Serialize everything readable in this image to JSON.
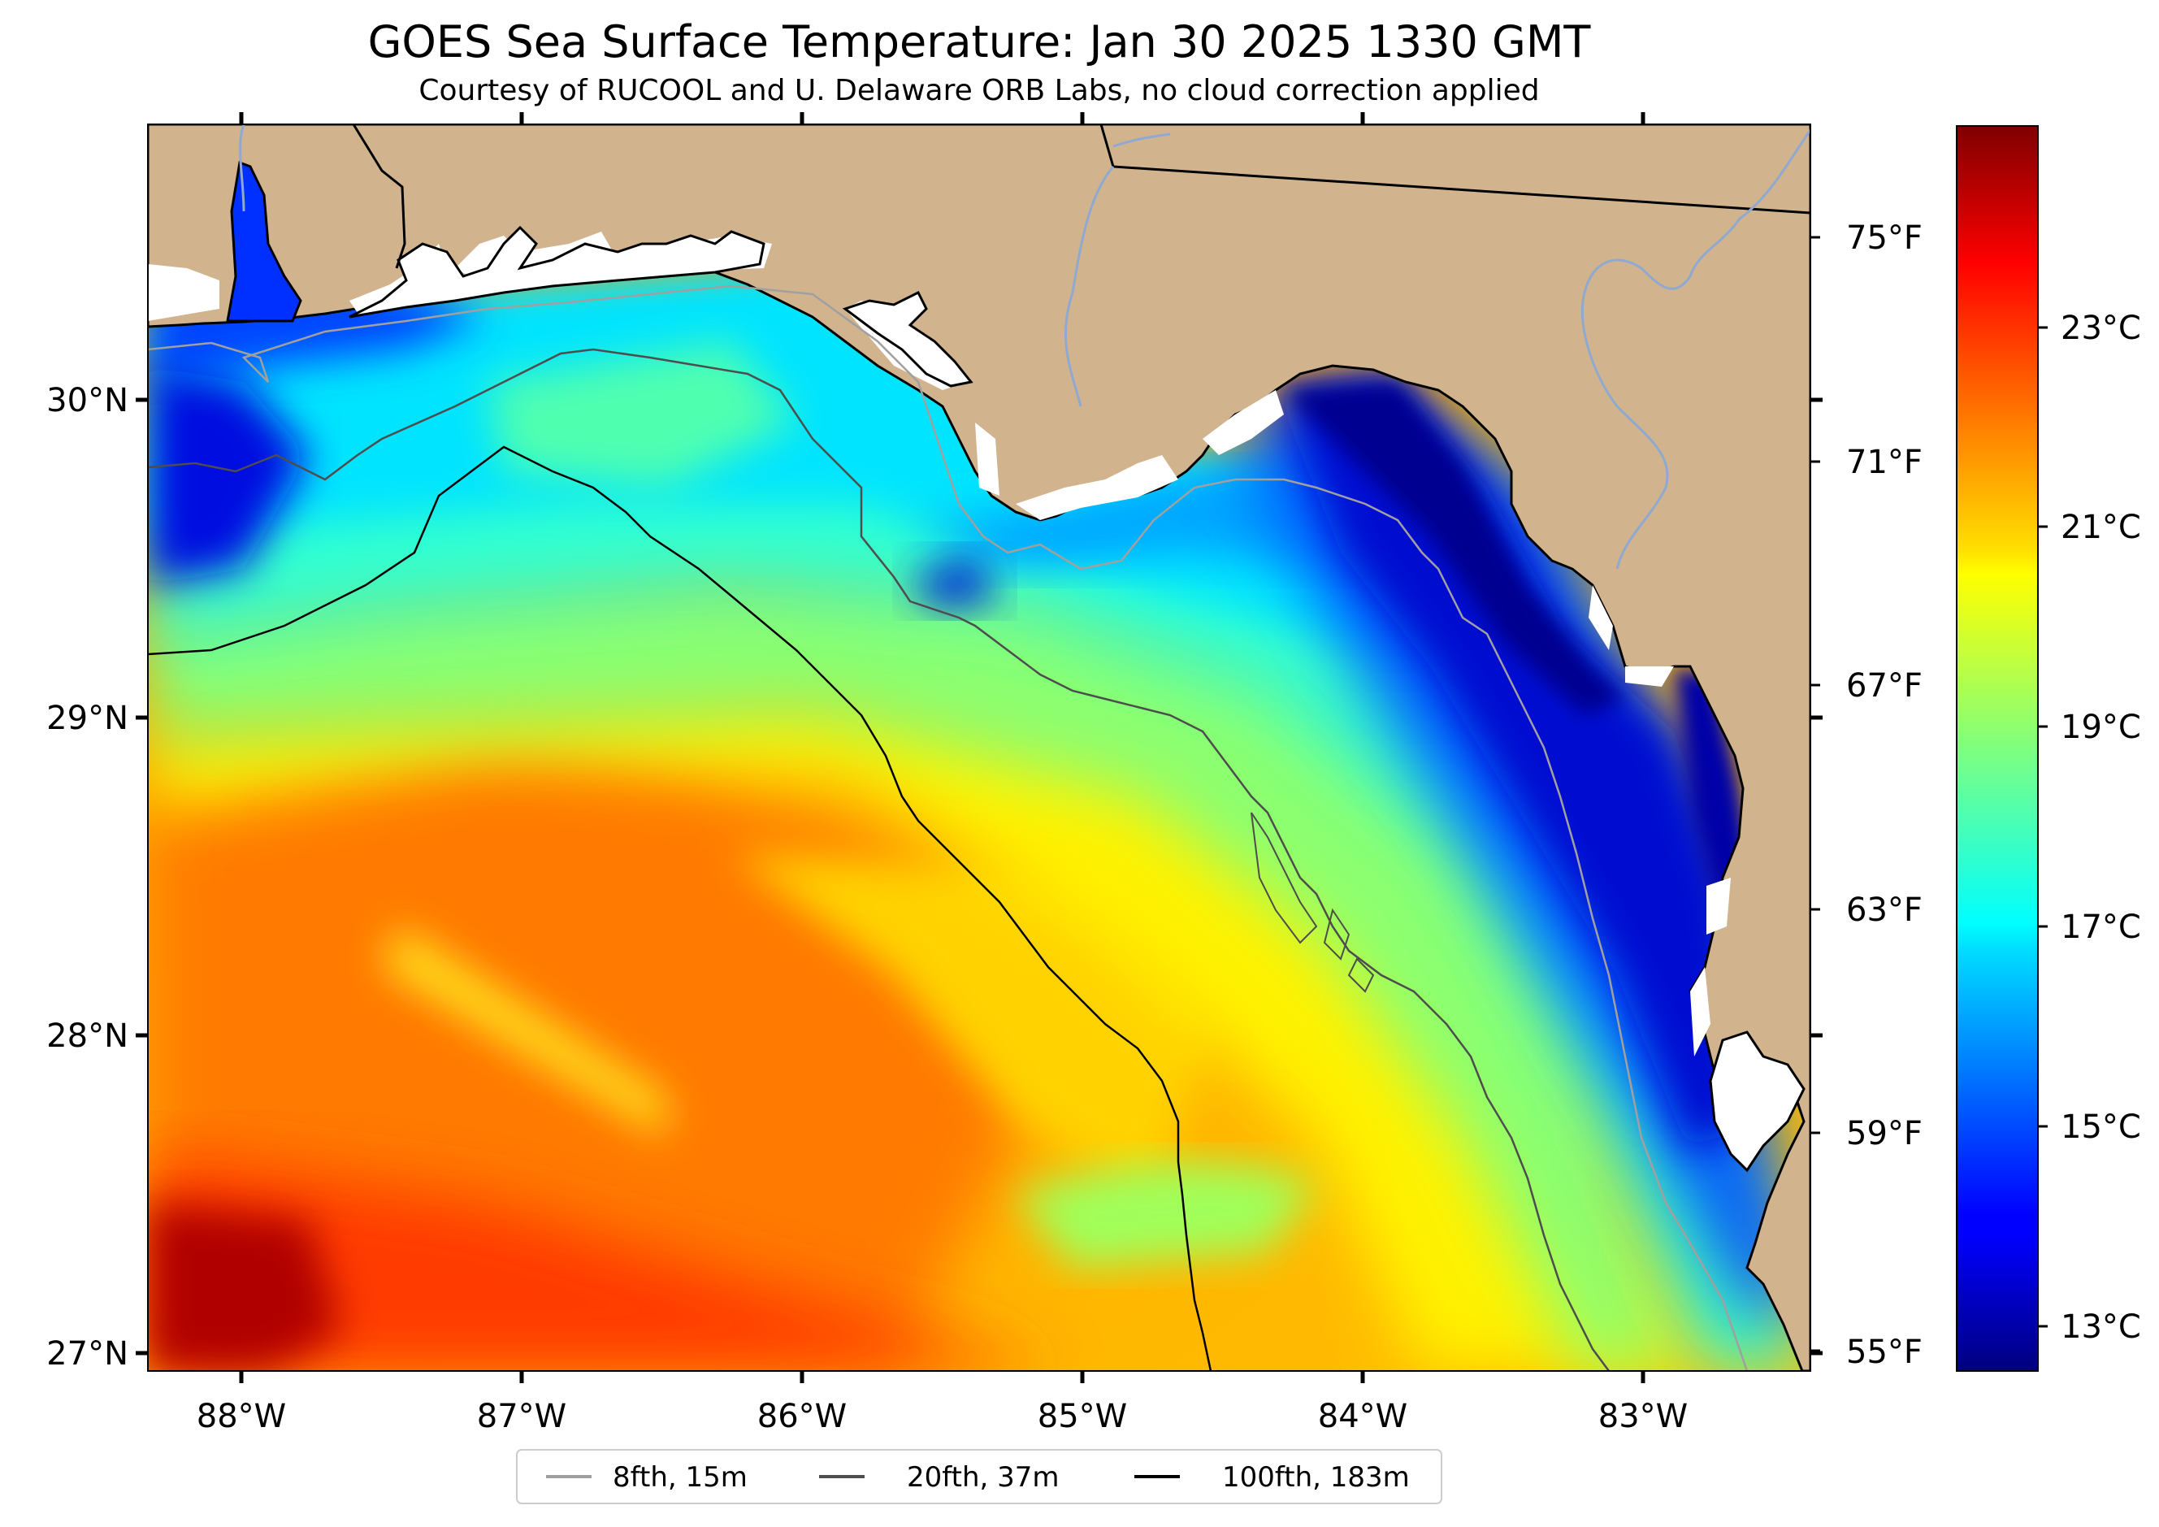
{
  "title": "GOES Sea Surface Temperature: Jan 30 2025 1330 GMT",
  "subtitle": "Courtesy of RUCOOL and U. Delaware ORB Labs, no cloud correction applied",
  "map": {
    "lon_range": [
      -88.33,
      -82.4
    ],
    "lat_range": [
      26.93,
      30.85
    ],
    "lon_ticks": [
      "88°W",
      "87°W",
      "86°W",
      "85°W",
      "84°W",
      "83°W"
    ],
    "lat_ticks": [
      "30°N",
      "29°N",
      "28°N",
      "27°N"
    ],
    "right_f_ticks": [
      "75°F",
      "71°F",
      "67°F",
      "63°F",
      "59°F",
      "55°F"
    ],
    "land_color": "#D1B38E"
  },
  "colorbar": {
    "colormap": "jet",
    "range_c": [
      12.7,
      25.2
    ],
    "ticks": [
      "23°C",
      "21°C",
      "19°C",
      "17°C",
      "15°C",
      "13°C"
    ]
  },
  "legend": {
    "items": [
      {
        "label": "8fth, 15m",
        "color": "#a0a0a0"
      },
      {
        "label": "20fth, 37m",
        "color": "#4d4d4d"
      },
      {
        "label": "100fth, 183m",
        "color": "#000000"
      }
    ]
  }
}
